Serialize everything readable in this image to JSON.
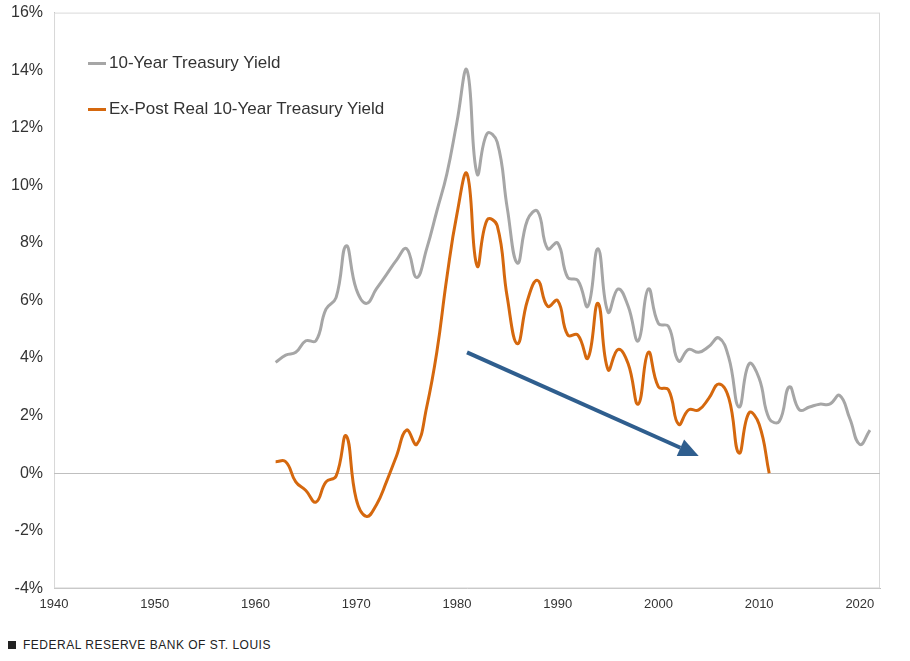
{
  "chart_data": {
    "type": "line",
    "x": [
      1962,
      1963,
      1964,
      1965,
      1966,
      1967,
      1968,
      1969,
      1970,
      1971,
      1972,
      1973,
      1974,
      1975,
      1976,
      1977,
      1978,
      1979,
      1980,
      1981,
      1982,
      1983,
      1984,
      1985,
      1986,
      1987,
      1988,
      1989,
      1990,
      1991,
      1992,
      1993,
      1994,
      1995,
      1996,
      1997,
      1998,
      1999,
      2000,
      2001,
      2002,
      2003,
      2004,
      2005,
      2006,
      2007,
      2008,
      2009,
      2010,
      2011,
      2012,
      2013,
      2014,
      2015,
      2016,
      2017,
      2018,
      2019,
      2020,
      2021
    ],
    "series": [
      {
        "name": "10-Year Treasury Yield",
        "color": "#a6a6a6",
        "values": [
          3.85,
          4.1,
          4.2,
          4.6,
          4.6,
          5.7,
          6.1,
          7.9,
          6.4,
          5.9,
          6.4,
          6.9,
          7.4,
          7.8,
          6.8,
          7.8,
          9.1,
          10.4,
          12.2,
          14.0,
          10.4,
          11.8,
          11.5,
          9.2,
          7.3,
          8.8,
          9.1,
          7.8,
          8.0,
          6.8,
          6.7,
          5.8,
          7.8,
          5.6,
          6.4,
          5.8,
          4.6,
          6.4,
          5.2,
          5.1,
          3.9,
          4.3,
          4.2,
          4.4,
          4.7,
          4.0,
          2.3,
          3.8,
          3.3,
          1.9,
          1.8,
          3.0,
          2.2,
          2.3,
          2.4,
          2.4,
          2.7,
          1.9,
          1.0,
          1.5
        ]
      },
      {
        "name": "Ex-Post Real 10-Year Treasury Yield",
        "color": "#d5680e",
        "values": [
          0.4,
          0.4,
          -0.3,
          -0.6,
          -1.0,
          -0.3,
          -0.1,
          1.3,
          -0.9,
          -1.5,
          -1.1,
          -0.3,
          0.6,
          1.5,
          1.0,
          2.3,
          4.2,
          6.8,
          9.0,
          10.4,
          7.2,
          8.8,
          8.6,
          6.1,
          4.5,
          6.0,
          6.7,
          5.8,
          6.0,
          4.8,
          4.8,
          4.0,
          5.9,
          3.6,
          4.3,
          3.8,
          2.4,
          4.2,
          3.0,
          2.9,
          1.7,
          2.2,
          2.2,
          2.6,
          3.1,
          2.6,
          0.7,
          2.1,
          1.7,
          0.0,
          null,
          null,
          null,
          null,
          null,
          null,
          null,
          null,
          null,
          null
        ]
      }
    ],
    "xlim": [
      1940,
      2022
    ],
    "xticks": [
      1940,
      1950,
      1960,
      1970,
      1980,
      1990,
      2000,
      2010,
      2020
    ],
    "ylim": [
      -4,
      16
    ],
    "yticks": [
      {
        "value": -4,
        "label": "-4%"
      },
      {
        "value": -2,
        "label": "-2%"
      },
      {
        "value": 0,
        "label": "0%"
      },
      {
        "value": 2,
        "label": "2%"
      },
      {
        "value": 4,
        "label": "4%"
      },
      {
        "value": 6,
        "label": "6%"
      },
      {
        "value": 8,
        "label": "8%"
      },
      {
        "value": 10,
        "label": "10%"
      },
      {
        "value": 12,
        "label": "12%"
      },
      {
        "value": 14,
        "label": "14%"
      },
      {
        "value": 16,
        "label": "16%"
      }
    ],
    "grid": false,
    "legend": "upper left",
    "annotations": [
      {
        "type": "arrow",
        "x": [
          1981,
          2004
        ],
        "y": [
          4.2,
          0.6
        ],
        "color": "#2f5e8e"
      }
    ],
    "source": "FEDERAL RESERVE BANK OF ST. LOUIS"
  }
}
